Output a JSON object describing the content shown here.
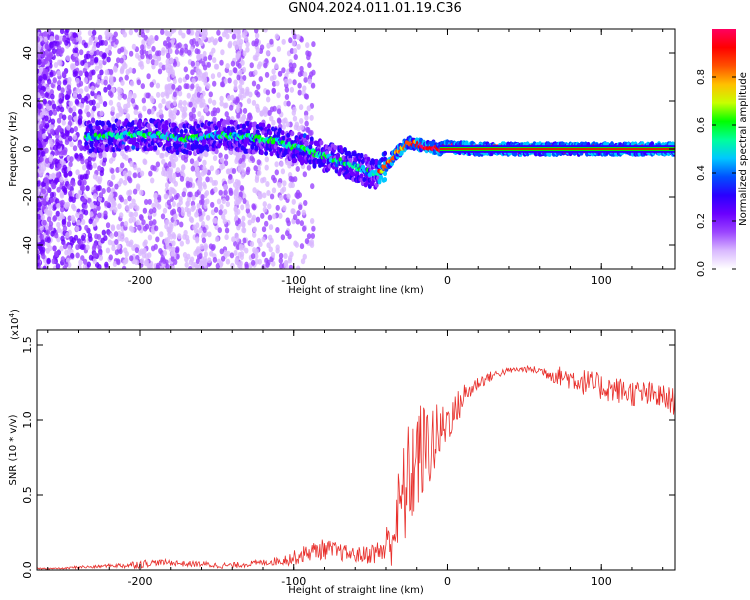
{
  "title": "GN04.2024.011.01.19.C36",
  "colors": {
    "snr_line": "#e8302c",
    "axes": "#000000",
    "background": "#ffffff",
    "colormap": [
      "#ffffff",
      "#d9b8ff",
      "#9b45ff",
      "#6a00ff",
      "#2a00ff",
      "#0050ff",
      "#00c8ff",
      "#00ff9a",
      "#00ff00",
      "#c8ff00",
      "#ffc000",
      "#ff5000",
      "#ff0000",
      "#ff0060"
    ]
  },
  "chart_data": [
    {
      "type": "heatmap",
      "title": "GN04.2024.011.01.19.C36",
      "xlabel": "Height of straight line (km)",
      "ylabel": "Frequency (Hz)",
      "xlim": [
        -267,
        148
      ],
      "ylim": [
        -50,
        50
      ],
      "xticks": [
        -200,
        -100,
        0,
        100
      ],
      "yticks": [
        -40,
        -20,
        0,
        20,
        40
      ],
      "colorbar": {
        "label": "Normalized spectral amplitude",
        "range": [
          0,
          1
        ],
        "ticks": [
          "0.0",
          "0.2",
          "0.4",
          "0.6",
          "0.8"
        ],
        "tick_values": [
          0.0,
          0.2,
          0.4,
          0.6,
          0.8
        ]
      },
      "ridge": {
        "x": [
          -230,
          -210,
          -190,
          -170,
          -150,
          -130,
          -110,
          -90,
          -75,
          -60,
          -50,
          -45,
          -40,
          -35,
          -30,
          -25,
          -20,
          -15,
          -10,
          -5,
          0,
          20,
          50,
          100,
          148
        ],
        "freq": [
          5,
          6,
          6,
          4,
          6,
          5,
          3,
          -1,
          -4,
          -7,
          -10,
          -10,
          -7,
          -3,
          0,
          3,
          2,
          1,
          1,
          0,
          1,
          0,
          0,
          0,
          0
        ]
      }
    },
    {
      "type": "line",
      "xlabel": "Height of straight line (km)",
      "ylabel": "SNR (10 * v/v)",
      "multiplier": "(x10",
      "multiplier_exp": "4",
      "multiplier_close": ")",
      "xlim": [
        -267,
        148
      ],
      "ylim": [
        0,
        1.6
      ],
      "xticks": [
        -200,
        -100,
        0,
        100
      ],
      "yticks": [
        0.0,
        0.5,
        1.0,
        1.5
      ],
      "ytick_labels": [
        "0.0",
        "0.5",
        "1.0",
        "1.5"
      ],
      "series": [
        {
          "x": [
            -267,
            -260,
            -250,
            -240,
            -230,
            -220,
            -210,
            -200,
            -190,
            -180,
            -170,
            -160,
            -150,
            -140,
            -130,
            -120,
            -110,
            -100,
            -90,
            -80,
            -70,
            -60,
            -55,
            -50,
            -45,
            -40,
            -35,
            -30,
            -25,
            -20,
            -15,
            -10,
            -5,
            0,
            5,
            10,
            15,
            20,
            30,
            40,
            50,
            60,
            70,
            80,
            90,
            100,
            110,
            120,
            130,
            140,
            148
          ],
          "values": [
            0.01,
            0.01,
            0.01,
            0.02,
            0.02,
            0.03,
            0.03,
            0.04,
            0.05,
            0.05,
            0.04,
            0.04,
            0.03,
            0.03,
            0.04,
            0.05,
            0.06,
            0.08,
            0.12,
            0.14,
            0.12,
            0.1,
            0.1,
            0.11,
            0.12,
            0.15,
            0.25,
            0.45,
            0.6,
            0.75,
            0.8,
            0.85,
            0.9,
            1.0,
            1.05,
            1.15,
            1.2,
            1.25,
            1.3,
            1.33,
            1.34,
            1.33,
            1.3,
            1.28,
            1.25,
            1.22,
            1.2,
            1.18,
            1.17,
            1.15,
            1.12
          ],
          "noise": [
            0.005,
            0.005,
            0.005,
            0.01,
            0.01,
            0.01,
            0.02,
            0.03,
            0.02,
            0.02,
            0.02,
            0.02,
            0.02,
            0.02,
            0.02,
            0.02,
            0.03,
            0.05,
            0.06,
            0.07,
            0.06,
            0.05,
            0.06,
            0.07,
            0.08,
            0.15,
            0.22,
            0.35,
            0.4,
            0.38,
            0.32,
            0.28,
            0.2,
            0.15,
            0.12,
            0.1,
            0.06,
            0.05,
            0.03,
            0.02,
            0.02,
            0.03,
            0.06,
            0.08,
            0.09,
            0.09,
            0.09,
            0.09,
            0.09,
            0.09,
            0.09
          ]
        }
      ]
    }
  ]
}
